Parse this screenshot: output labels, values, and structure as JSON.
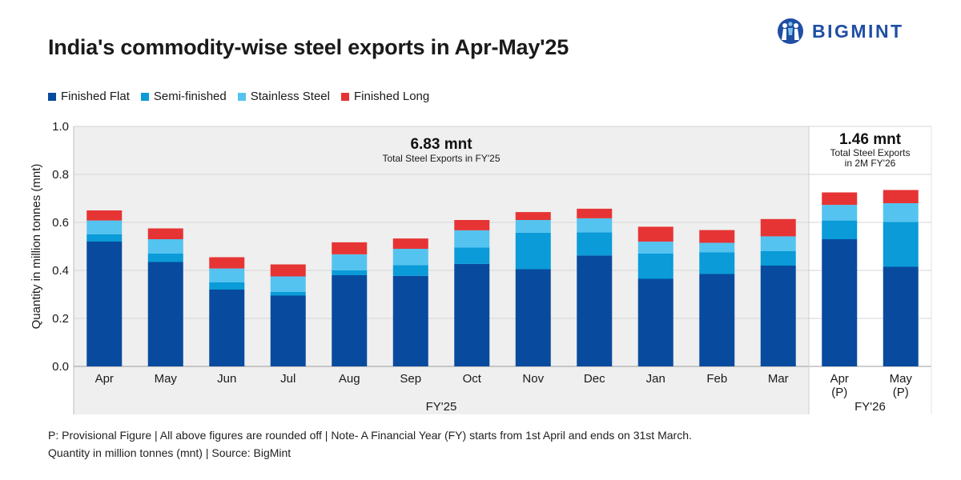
{
  "header": {
    "title": "India's commodity-wise steel exports in Apr-May'25",
    "logo_text": "BIGMINT"
  },
  "colors": {
    "finished_flat": "#084b9e",
    "semi_finished": "#0a9bd8",
    "stainless_steel": "#55c3ef",
    "finished_long": "#e63434",
    "brand": "#1f4ea3"
  },
  "chart_data": {
    "type": "bar",
    "stacked": true,
    "ylabel": "Quantity in million tonnes (mnt)",
    "ylim": [
      0,
      1.0
    ],
    "yticks": [
      "0.0",
      "0.2",
      "0.4",
      "0.6",
      "0.8",
      "1.0"
    ],
    "grid": true,
    "legend_position": "top-left",
    "categories": [
      "Apr",
      "May",
      "Jun",
      "Jul",
      "Aug",
      "Sep",
      "Oct",
      "Nov",
      "Dec",
      "Jan",
      "Feb",
      "Mar",
      "Apr\n(P)",
      "May\n(P)"
    ],
    "series": [
      {
        "name": "Finished Flat",
        "values": [
          0.52,
          0.435,
          0.32,
          0.295,
          0.38,
          0.377,
          0.427,
          0.405,
          0.462,
          0.365,
          0.385,
          0.42,
          0.53,
          0.415
        ]
      },
      {
        "name": "Semi-finished",
        "values": [
          0.03,
          0.035,
          0.03,
          0.015,
          0.02,
          0.045,
          0.068,
          0.152,
          0.097,
          0.105,
          0.09,
          0.06,
          0.078,
          0.187
        ]
      },
      {
        "name": "Stainless Steel",
        "values": [
          0.058,
          0.06,
          0.058,
          0.065,
          0.067,
          0.068,
          0.072,
          0.053,
          0.058,
          0.05,
          0.04,
          0.062,
          0.065,
          0.078
        ]
      },
      {
        "name": "Finished Long",
        "values": [
          0.042,
          0.045,
          0.047,
          0.05,
          0.05,
          0.043,
          0.043,
          0.033,
          0.04,
          0.062,
          0.053,
          0.072,
          0.052,
          0.055
        ]
      }
    ],
    "groups": [
      {
        "label": "FY'25",
        "summary_value": "6.83 mnt",
        "summary_label": "Total Steel Exports in FY'25",
        "start": 0,
        "end": 11
      },
      {
        "label": "FY'26",
        "summary_value": "1.46 mnt",
        "summary_label": "Total Steel Exports\nin 2M FY'26",
        "start": 12,
        "end": 13
      }
    ]
  },
  "footnotes": {
    "line1": "P: Provisional Figure | All above figures are rounded off | Note- A Financial Year (FY) starts from 1st April and ends on 31st March.",
    "line2": "Quantity in million tonnes (mnt) | Source: BigMint"
  }
}
